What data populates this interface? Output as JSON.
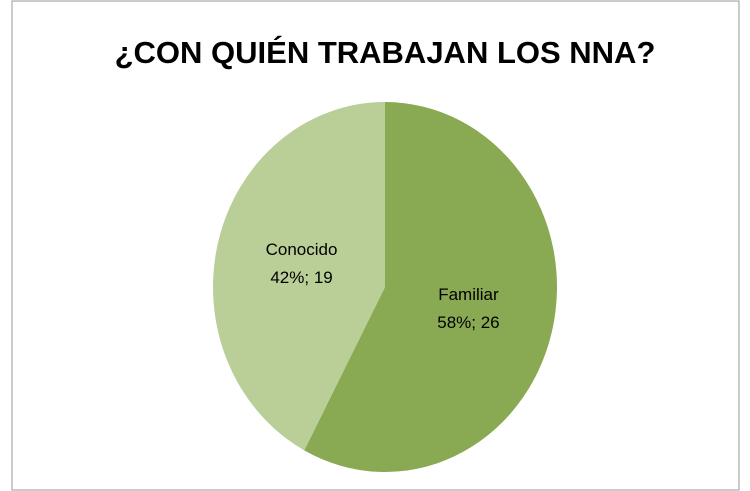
{
  "chart_data": {
    "type": "pie",
    "title": "¿CON QUIÉN TRABAJAN LOS NNA?",
    "categories": [
      "Familiar",
      "Conocido"
    ],
    "values": [
      26,
      19
    ],
    "value_labels": [
      "58%; 26",
      "42%; 19"
    ],
    "colors": [
      "#8aa953",
      "#b9cf97"
    ]
  }
}
